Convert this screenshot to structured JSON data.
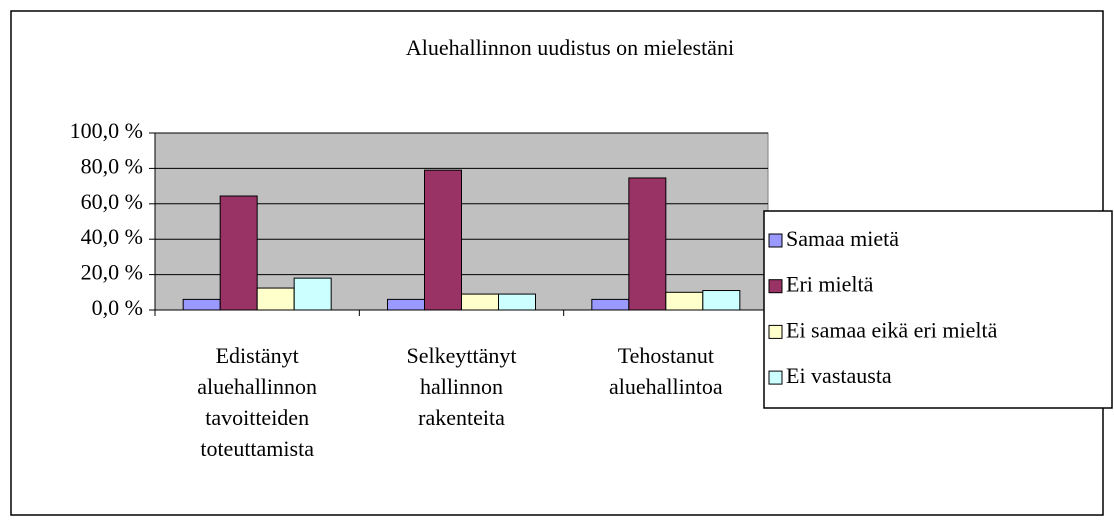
{
  "chart_data": {
    "type": "bar",
    "title": "Aluehallinnon uudistus on mielestäni",
    "categories": [
      "Edistänyt aluehallinnon tavoitteiden toteuttamista",
      "Selkeyttänyt hallinnon rakenteita",
      "Tehostanut aluehallintoa"
    ],
    "series": [
      {
        "name": "Samaa mietä",
        "color": "#9999ff",
        "values": [
          6,
          6,
          6
        ]
      },
      {
        "name": "Eri mieltä",
        "color": "#993366",
        "values": [
          64.4,
          79,
          74.6
        ]
      },
      {
        "name": "Ei samaa eikä eri mieltä",
        "color": "#ffffcc",
        "values": [
          12.4,
          9,
          10
        ]
      },
      {
        "name": "Ei vastausta",
        "color": "#ccffff",
        "values": [
          18,
          9,
          11
        ]
      }
    ],
    "ylim": [
      0,
      100
    ],
    "yticks": [
      {
        "value": 0,
        "label": "0,0 %"
      },
      {
        "value": 20,
        "label": "20,0 %"
      },
      {
        "value": 40,
        "label": "40,0 %"
      },
      {
        "value": 60,
        "label": "60,0 %"
      },
      {
        "value": 80,
        "label": "80,0 %"
      },
      {
        "value": 100,
        "label": "100,0 %"
      }
    ],
    "grid": true,
    "legend": "right"
  }
}
